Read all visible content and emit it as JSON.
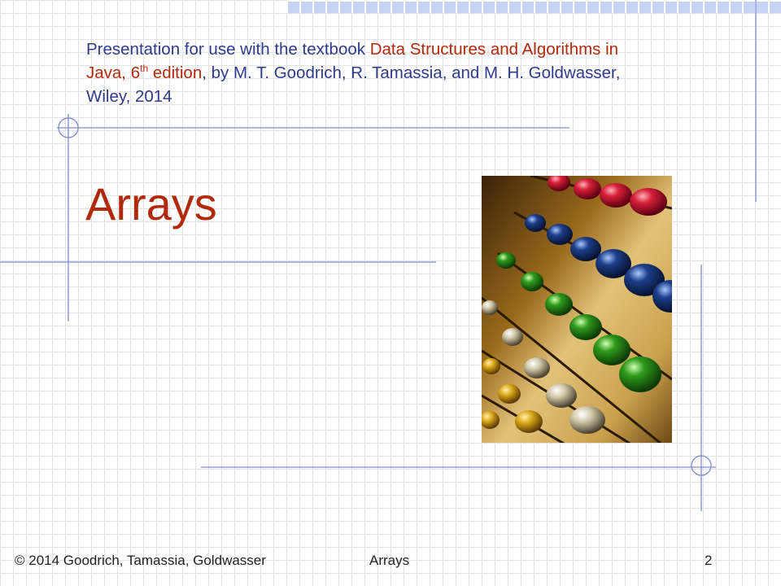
{
  "slide": {
    "subtitle": {
      "prefix": "Presentation for use with the textbook ",
      "book_title": "Data Structures and Algorithms in Java, 6",
      "edition_sup": "th",
      "edition_word": " edition",
      "suffix": ", by M. T. Goodrich, R. Tamassia, and M. H. Goldwasser, Wiley, 2014"
    },
    "title": "Arrays",
    "image_icon": "abacus-photo"
  },
  "footer": {
    "copyright": "© 2014 Goodrich, Tamassia, Goldwasser",
    "topic": "Arrays",
    "page_number": "2"
  },
  "colors": {
    "subtitle_text": "#2e3a8c",
    "title_accent": "#b22a0c",
    "rule_lines": "#7e8bd0",
    "top_band": "#c9d3f3"
  }
}
